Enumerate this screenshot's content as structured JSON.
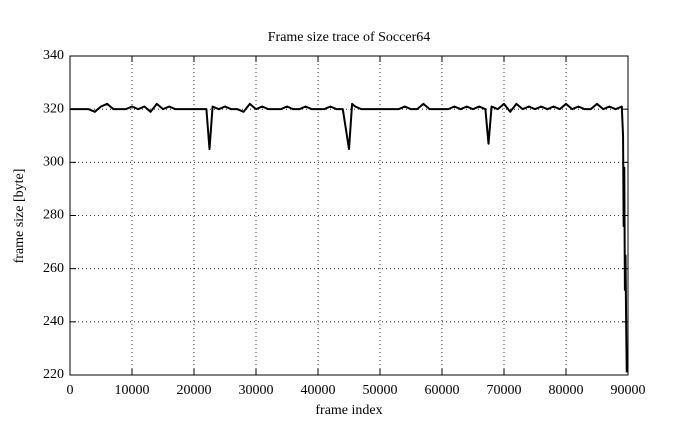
{
  "chart_data": {
    "type": "line",
    "title": "Frame size trace of Soccer64",
    "x_label": "frame index",
    "y_label": "frame size [byte]",
    "x": [
      0,
      1000,
      2000,
      3000,
      4000,
      5000,
      6000,
      7000,
      8000,
      9000,
      10000,
      11000,
      12000,
      13000,
      14000,
      15000,
      16000,
      17000,
      18000,
      19000,
      20000,
      21000,
      22000,
      22500,
      23000,
      24000,
      25000,
      26000,
      27000,
      28000,
      29000,
      30000,
      31000,
      32000,
      33000,
      34000,
      35000,
      36000,
      37000,
      38000,
      39000,
      40000,
      41000,
      42000,
      43000,
      44000,
      45000,
      45500,
      46000,
      47000,
      48000,
      49000,
      50000,
      51000,
      52000,
      53000,
      54000,
      55000,
      56000,
      57000,
      58000,
      59000,
      60000,
      61000,
      62000,
      63000,
      64000,
      65000,
      66000,
      67000,
      67500,
      68000,
      69000,
      70000,
      71000,
      72000,
      73000,
      74000,
      75000,
      76000,
      77000,
      78000,
      79000,
      80000,
      81000,
      82000,
      83000,
      84000,
      85000,
      86000,
      87000,
      88000,
      89000,
      89200,
      89300,
      89400,
      89500,
      89600,
      89700,
      89800
    ],
    "values": [
      320,
      320,
      320,
      320,
      319,
      321,
      322,
      320,
      320,
      320,
      321,
      320,
      321,
      319,
      322,
      320,
      321,
      320,
      320,
      320,
      320,
      320,
      320,
      305,
      321,
      320,
      321,
      320,
      320,
      319,
      322,
      320,
      321,
      320,
      320,
      320,
      321,
      320,
      320,
      321,
      320,
      320,
      320,
      321,
      320,
      320,
      305,
      322,
      321,
      320,
      320,
      320,
      320,
      320,
      320,
      320,
      321,
      320,
      320,
      322,
      320,
      320,
      320,
      320,
      321,
      320,
      321,
      320,
      321,
      320,
      307,
      321,
      320,
      322,
      319,
      322,
      320,
      321,
      320,
      321,
      320,
      321,
      320,
      322,
      320,
      321,
      320,
      320,
      322,
      320,
      321,
      320,
      321,
      310,
      276,
      298,
      252,
      265,
      240,
      221
    ],
    "color": "#000000",
    "xlim": [
      0,
      90000
    ],
    "ylim": [
      220,
      340
    ],
    "xticks": [
      0,
      10000,
      20000,
      30000,
      40000,
      50000,
      60000,
      70000,
      80000,
      90000
    ],
    "yticks": [
      220,
      240,
      260,
      280,
      300,
      320,
      340
    ],
    "grid": true
  }
}
